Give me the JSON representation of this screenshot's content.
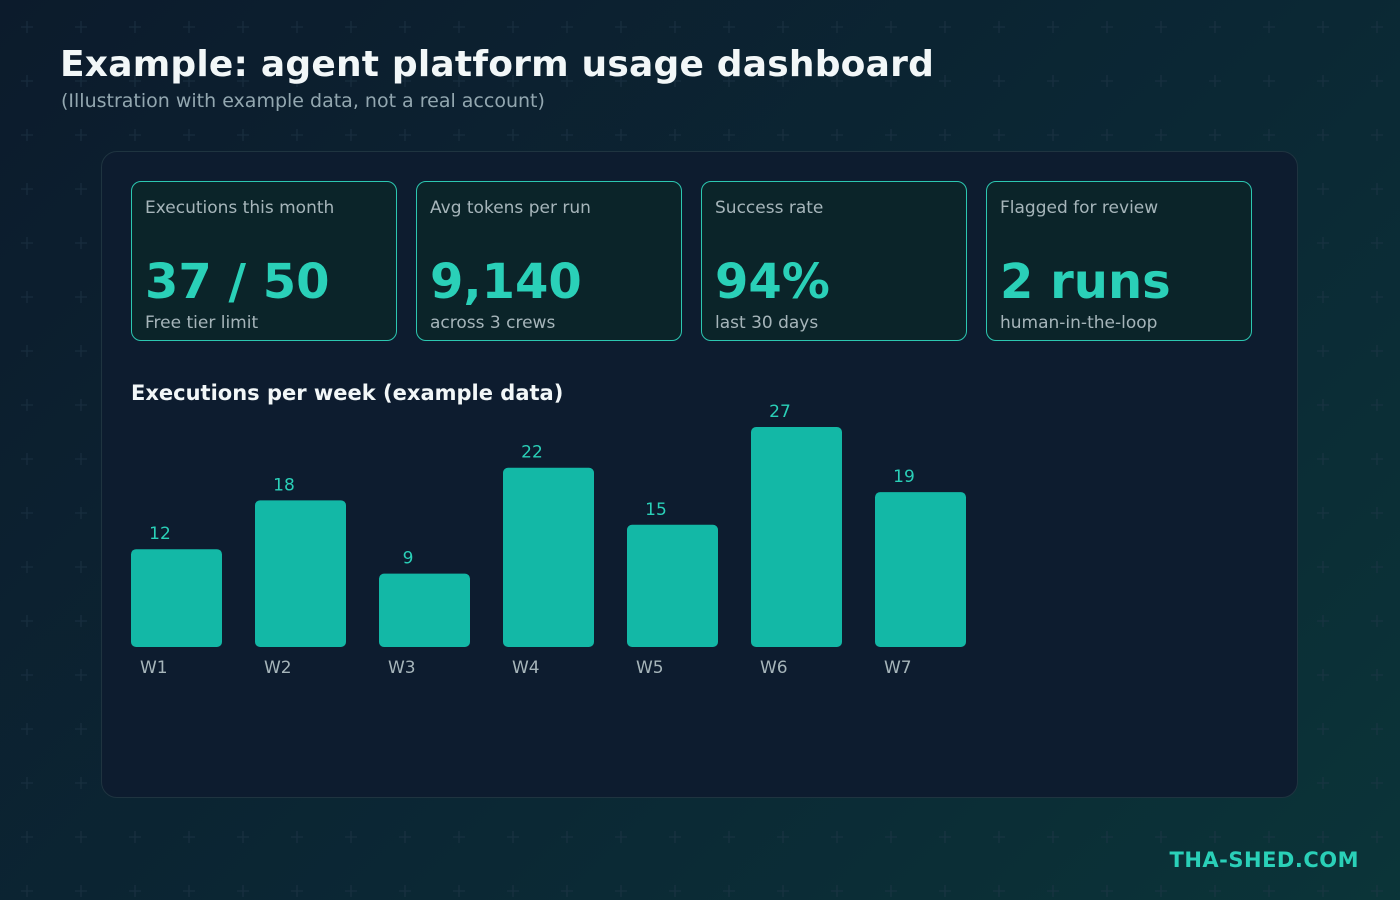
{
  "header": {
    "title": "Example: agent platform usage dashboard",
    "subtitle": "(Illustration with example data, not a real account)"
  },
  "kpis": [
    {
      "label": "Executions this month",
      "value": "37 / 50",
      "note": "Free tier limit"
    },
    {
      "label": "Avg tokens per run",
      "value": "9,140",
      "note": "across 3 crews"
    },
    {
      "label": "Success rate",
      "value": "94%",
      "note": "last 30 days"
    },
    {
      "label": "Flagged for review",
      "value": "2 runs",
      "note": "human-in-the-loop"
    }
  ],
  "chart_data": {
    "type": "bar",
    "title": "Executions per week (example data)",
    "categories": [
      "W1",
      "W2",
      "W3",
      "W4",
      "W5",
      "W6",
      "W7"
    ],
    "values": [
      12,
      18,
      9,
      22,
      15,
      27,
      19
    ],
    "xlabel": "",
    "ylabel": "",
    "ylim": [
      0,
      27
    ],
    "grid": false,
    "legend": "none",
    "bar_color": "#13b8a6"
  },
  "colors": {
    "accent": "#2ad0b8",
    "bar": "#13b8a6",
    "panel": "#0d1c2f"
  },
  "footer": {
    "brand": "THA-SHED.COM"
  }
}
